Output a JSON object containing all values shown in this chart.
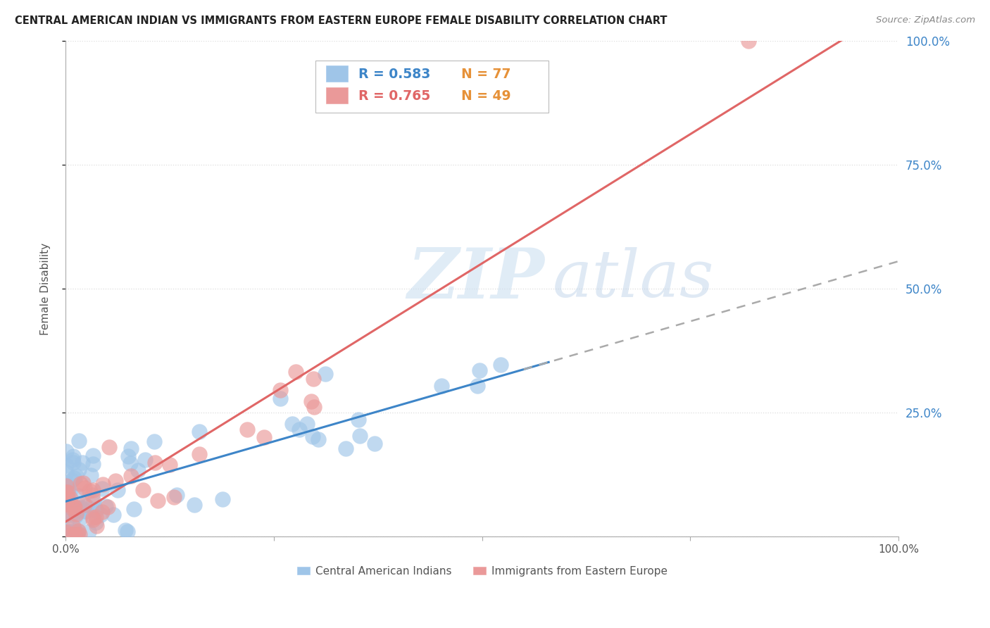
{
  "title": "CENTRAL AMERICAN INDIAN VS IMMIGRANTS FROM EASTERN EUROPE FEMALE DISABILITY CORRELATION CHART",
  "source": "Source: ZipAtlas.com",
  "ylabel": "Female Disability",
  "blue_R": 0.583,
  "blue_N": 77,
  "pink_R": 0.765,
  "pink_N": 49,
  "blue_color": "#9fc5e8",
  "pink_color": "#ea9999",
  "blue_line_color": "#3d85c8",
  "pink_line_color": "#e06666",
  "watermark_zip": "ZIP",
  "watermark_atlas": "atlas",
  "legend_label_blue": "Central American Indians",
  "legend_label_pink": "Immigrants from Eastern Europe",
  "R_color": "#3d85c8",
  "N_color": "#e69138",
  "xlim": [
    0,
    1.0
  ],
  "ylim": [
    0,
    1.0
  ],
  "x_ticks": [
    0.0,
    0.25,
    0.5,
    0.75,
    1.0
  ],
  "y_ticks": [
    0.0,
    0.25,
    0.5,
    0.75,
    1.0
  ],
  "right_tick_labels": [
    "",
    "25.0%",
    "50.0%",
    "75.0%",
    "100.0%"
  ],
  "right_tick_color": "#3d85c8",
  "grid_color": "#dddddd",
  "spine_color": "#aaaaaa"
}
